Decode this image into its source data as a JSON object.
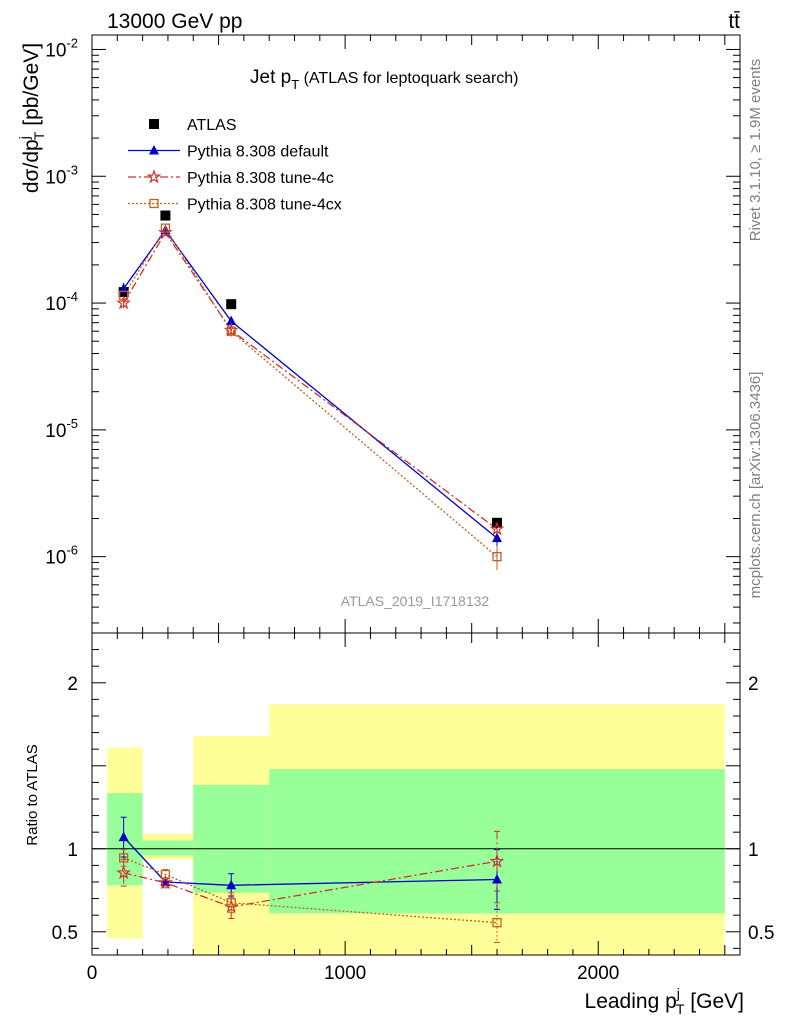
{
  "header": {
    "process": "13000 GeV pp",
    "final_state": "tt̄"
  },
  "side_labels": {
    "rivet": "Rivet 3.1.10, ≥ 1.9M events",
    "mcplots": "mcplots.cern.ch [arXiv:1306.3436]"
  },
  "chart_data": {
    "type": "scatter",
    "title": "Jet p_T (ATLAS for leptoquark search)",
    "analysis_id": "ATLAS_2019_I1718132",
    "xlabel": "Leading p_T^j [GeV]",
    "ylabel": "dσ/dp_T^j [pb/GeV]",
    "ratio_ylabel": "Ratio to ATLAS",
    "xlim": [
      0,
      2560
    ],
    "ylim": [
      2.5e-07,
      0.013
    ],
    "ylog": true,
    "ratio_ylim": [
      0.36,
      2.3
    ],
    "x_ticks": [
      0,
      1000,
      2000
    ],
    "y_ticks": [
      1e-06,
      1e-05,
      0.0001,
      0.001,
      0.01
    ],
    "y_tick_labels": [
      "10^-6",
      "10^-5",
      "10^-4",
      "10^-3",
      "10^-2"
    ],
    "ratio_ticks": [
      0.5,
      1,
      2
    ],
    "ratio_tick_labels": [
      "0.5",
      "1",
      "2"
    ],
    "legend_position": "top-left",
    "bins": [
      [
        60,
        200
      ],
      [
        200,
        400
      ],
      [
        400,
        700
      ],
      [
        700,
        2500
      ]
    ],
    "data": {
      "name": "ATLAS",
      "color": "#000000",
      "x": [
        125,
        290,
        550,
        1600
      ],
      "y": [
        0.000122,
        0.00049,
        9.8e-05,
        1.85e-06
      ]
    },
    "ratio_bands": {
      "yellow": [
        [
          0.46,
          1.61
        ],
        [
          0.935,
          1.09
        ],
        [
          0.3,
          1.68
        ],
        [
          0.3,
          1.87
        ]
      ],
      "green": [
        [
          0.78,
          1.335
        ],
        [
          0.96,
          1.05
        ],
        [
          0.735,
          1.385
        ],
        [
          0.61,
          1.48
        ]
      ]
    },
    "series": [
      {
        "name": "Pythia 8.308 default",
        "color": "#0000cc",
        "marker": "triangle",
        "line": "solid",
        "x": [
          125,
          290,
          550,
          1600
        ],
        "y": [
          0.00013,
          0.000375,
          7.2e-05,
          1.4e-06
        ],
        "ratio": [
          1.07,
          0.8,
          0.78,
          0.815
        ],
        "ratio_err": [
          0.12,
          0.02,
          0.07,
          0.18
        ]
      },
      {
        "name": "Pythia 8.308 tune-4c",
        "color": "#d03030",
        "marker": "star",
        "line": "dashdot",
        "x": [
          125,
          290,
          550,
          1600
        ],
        "y": [
          0.0001,
          0.00036,
          6.1e-05,
          1.65e-06
        ],
        "ratio": [
          0.855,
          0.795,
          0.65,
          0.925
        ],
        "ratio_err": [
          0.08,
          0.03,
          0.07,
          0.18
        ]
      },
      {
        "name": "Pythia 8.308 tune-4cx",
        "color": "#c06020",
        "marker": "open-square",
        "line": "dotted",
        "x": [
          125,
          290,
          550,
          1600
        ],
        "y": [
          0.000115,
          0.00039,
          6e-05,
          1e-06
        ],
        "ratio": [
          0.945,
          0.845,
          0.675,
          0.555
        ],
        "ratio_err": [
          0.05,
          0.03,
          0.06,
          0.12
        ]
      }
    ]
  }
}
